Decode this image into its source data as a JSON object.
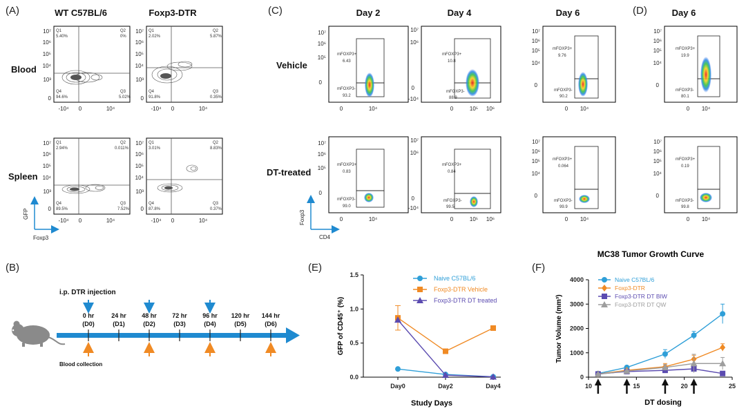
{
  "panels": {
    "A": {
      "label": "(A)",
      "columns": [
        "WT C57BL/6",
        "Foxp3-DTR"
      ],
      "rows": [
        "Blood",
        "Spleen"
      ],
      "x_axis_name": "Foxp3",
      "y_axis_name": "GFP",
      "x_ticks": [
        "-10⁴",
        "0",
        "10⁴"
      ],
      "y_ticks": [
        "10⁷",
        "10⁶",
        "10⁵",
        "10⁴",
        "10³",
        "0"
      ],
      "plots": [
        {
          "q1": "Q1",
          "q1v": "5.40%",
          "q2": "Q2",
          "q2v": "0%",
          "q3": "Q3",
          "q3v": "5.02%",
          "q4": "Q4",
          "q4v": "94.6%"
        },
        {
          "q1": "Q1",
          "q1v": "2.02%",
          "q2": "Q2",
          "q2v": "5.87%",
          "q3": "Q3",
          "q3v": "0.35%",
          "q4": "Q4",
          "q4v": "91.8%"
        },
        {
          "q1": "Q1",
          "q1v": "2.94%",
          "q2": "Q2",
          "q2v": "0.011%",
          "q3": "Q3",
          "q3v": "7.52%",
          "q4": "Q4",
          "q4v": "89.5%"
        },
        {
          "q1": "Q1",
          "q1v": "3.01%",
          "q2": "Q2",
          "q2v": "8.83%",
          "q3": "Q3",
          "q3v": "0.37%",
          "q4": "Q4",
          "q4v": "87.8%"
        }
      ]
    },
    "C": {
      "label": "(C)",
      "columns": [
        "Day 2",
        "Day 4",
        "Day 6"
      ],
      "rows": [
        "Vehicle",
        "DT-treated"
      ],
      "x_axis_name": "CD4",
      "y_axis_name": "Foxp3",
      "gate_pos": "mFOXP3+",
      "gate_neg": "mFOXP3-",
      "x_ticks_a": [
        "0",
        "10⁴"
      ],
      "x_ticks_b": [
        "0",
        "10⁵",
        "10⁶"
      ],
      "y_ticks_a": [
        "10⁷",
        "10⁶",
        "10⁵",
        "0"
      ],
      "y_ticks_b": [
        "10⁷",
        "10⁶",
        "10⁵",
        "10⁴",
        "0"
      ],
      "y_ticks_c": [
        "10⁷",
        "10⁶",
        "0",
        "-10⁴"
      ],
      "values": [
        {
          "pos": "6.43",
          "neg": "93.2"
        },
        {
          "pos": "10.8",
          "neg": "88.9"
        },
        {
          "pos": "9.76",
          "neg": "90.2"
        },
        {
          "pos": "0.83",
          "neg": "99.0"
        },
        {
          "pos": "0.84",
          "neg": "99.5"
        },
        {
          "pos": "0.064",
          "neg": "99.9"
        }
      ]
    },
    "D": {
      "label": "(D)",
      "column": "Day 6",
      "values": [
        {
          "pos": "19.9",
          "neg": "80.1"
        },
        {
          "pos": "0.19",
          "neg": "99.8"
        }
      ]
    },
    "B": {
      "label": "(B)",
      "injection_label": "i.p. DTR injection",
      "blood_label": "Blood collection",
      "timepoints": [
        {
          "hr": "0 hr",
          "day": "(D0)"
        },
        {
          "hr": "24 hr",
          "day": "(D1)"
        },
        {
          "hr": "48 hr",
          "day": "(D2)"
        },
        {
          "hr": "72 hr",
          "day": "(D3)"
        },
        {
          "hr": "96 hr",
          "day": "(D4)"
        },
        {
          "hr": "120 hr",
          "day": "(D5)"
        },
        {
          "hr": "144 hr",
          "day": "(D6)"
        }
      ],
      "injection_color": "#1f8ad0",
      "blood_color": "#f08a24"
    },
    "E": {
      "label": "(E)"
    },
    "F": {
      "label": "(F)"
    }
  },
  "chart_data": [
    {
      "type": "line",
      "panel": "E",
      "title": "",
      "xlabel": "Study Days",
      "ylabel": "GFP of CD45⁺ (%)",
      "categories": [
        "Day0",
        "Day2",
        "Day4"
      ],
      "ylim": [
        0,
        1.5
      ],
      "yticks": [
        0.0,
        0.5,
        1.0,
        1.5
      ],
      "ytick_labels": [
        "0.0",
        "0.5",
        "1.0",
        "1.5"
      ],
      "legend_position": "top-right",
      "series": [
        {
          "name": "Naive C57BL/6",
          "color": "#2f9fd8",
          "marker": "circle",
          "values": [
            0.12,
            0.04,
            0.005
          ],
          "err": [
            0,
            0,
            0
          ]
        },
        {
          "name": "Foxp3-DTR Vehicle",
          "color": "#f08a24",
          "marker": "square",
          "values": [
            0.87,
            0.38,
            0.72
          ],
          "err": [
            0.18,
            0,
            0
          ]
        },
        {
          "name": "Foxp3-DTR DT treated",
          "color": "#5b4bb0",
          "marker": "triangle",
          "values": [
            0.84,
            0.03,
            0.005
          ],
          "err": [
            0,
            0,
            0
          ]
        }
      ]
    },
    {
      "type": "line",
      "panel": "F",
      "title": "MC38 Tumor Growth Curve",
      "xlabel": "DT dosing",
      "ylabel": "Tumor Volume (mm³)",
      "xlim": [
        10,
        25
      ],
      "xticks": [
        10,
        15,
        20,
        25
      ],
      "ylim": [
        0,
        4000
      ],
      "yticks": [
        0,
        1000,
        2000,
        3000,
        4000
      ],
      "legend_position": "top-left",
      "dosing_days": [
        11,
        14,
        18,
        21
      ],
      "series": [
        {
          "name": "Naive C57BL/6",
          "color": "#2f9fd8",
          "marker": "circle",
          "x": [
            11,
            14,
            18,
            21,
            24
          ],
          "values": [
            150,
            400,
            950,
            1720,
            2600
          ],
          "err": [
            40,
            60,
            180,
            160,
            400
          ]
        },
        {
          "name": "Foxp3-DTR",
          "color": "#f08a24",
          "marker": "diamond",
          "x": [
            11,
            14,
            18,
            21,
            24
          ],
          "values": [
            130,
            280,
            430,
            740,
            1220
          ],
          "err": [
            30,
            50,
            130,
            160,
            150
          ]
        },
        {
          "name": "Foxp3-DTR DT BIW",
          "color": "#5b4bb0",
          "marker": "square",
          "x": [
            11,
            14,
            18,
            21,
            24
          ],
          "values": [
            130,
            230,
            280,
            340,
            150
          ],
          "err": [
            30,
            40,
            60,
            80,
            40
          ]
        },
        {
          "name": "Foxp3-DTR DT QW",
          "color": "#9e9e9e",
          "marker": "triangle",
          "x": [
            11,
            14,
            18,
            21,
            24
          ],
          "values": [
            120,
            250,
            400,
            560,
            560
          ],
          "err": [
            30,
            50,
            120,
            380,
            250
          ]
        }
      ]
    }
  ]
}
